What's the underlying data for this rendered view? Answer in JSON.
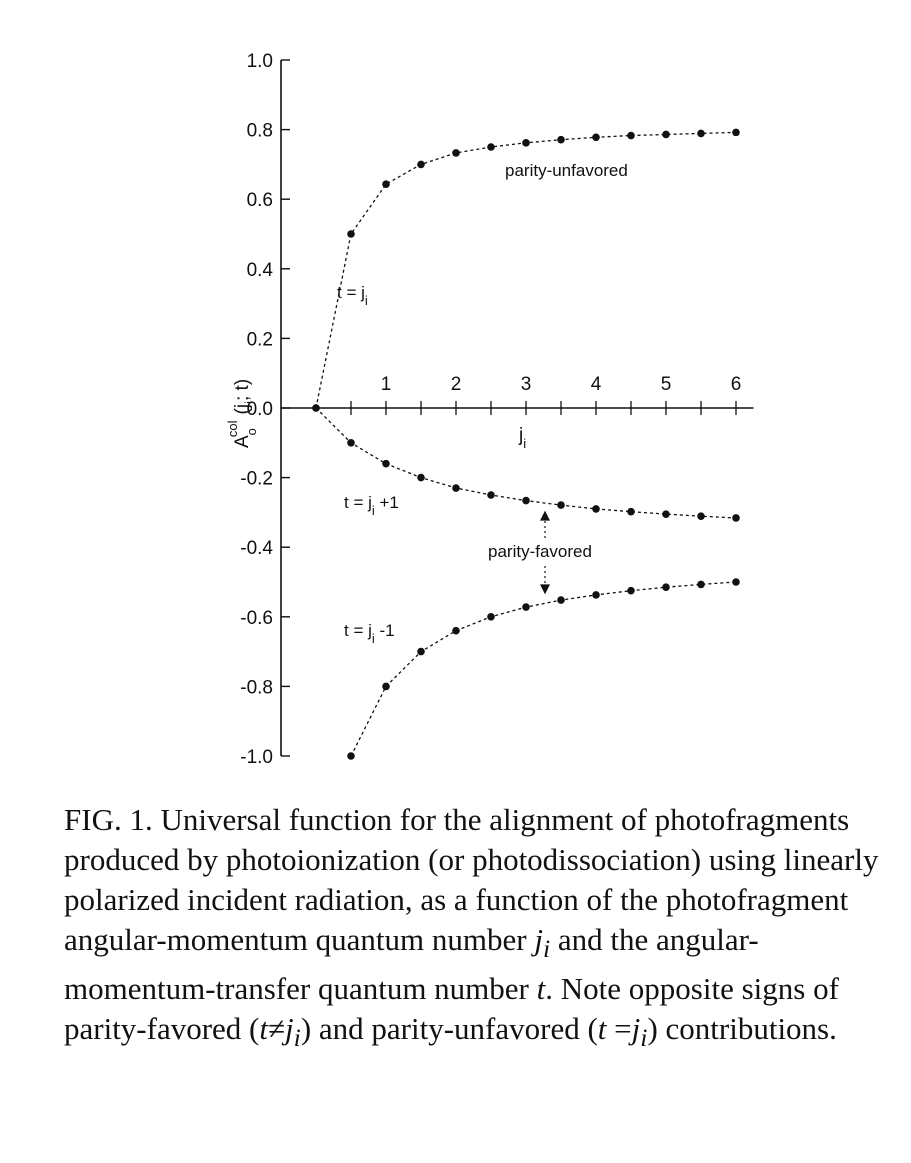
{
  "chart_data": {
    "type": "scatter",
    "ylabel_main": "A",
    "ylabel_sup": "col",
    "ylabel_sub": "o",
    "ylabel_args": "(j",
    "ylabel_args_sub": "i",
    "ylabel_args_end": "; t)",
    "xlabel_main": "j",
    "xlabel_sub": "i",
    "xlim": [
      0,
      6.25
    ],
    "ylim": [
      -1.0,
      1.0
    ],
    "x_ticks": [
      1,
      2,
      3,
      4,
      5,
      6
    ],
    "x_tick_labels": [
      "1",
      "2",
      "3",
      "4",
      "5",
      "6"
    ],
    "x_minor_step": 0.5,
    "y_ticks": [
      1.0,
      0.8,
      0.6,
      0.4,
      0.2,
      0.0,
      -0.2,
      -0.4,
      -0.6,
      -0.8,
      -1.0
    ],
    "y_tick_labels": [
      "1.0",
      "0.8",
      "0.6",
      "0.4",
      "0.2",
      "0.0",
      "-0.2",
      "-0.4",
      "-0.6",
      "-0.8",
      "-1.0"
    ],
    "grid": false,
    "series": [
      {
        "x": [
          0,
          0.5,
          1,
          1.5,
          2,
          2.5,
          3,
          3.5,
          4,
          4.5,
          5,
          5.5,
          6
        ],
        "values": [
          0,
          0.5,
          0.643,
          0.7,
          0.733,
          0.75,
          0.762,
          0.771,
          0.778,
          0.783,
          0.786,
          0.789,
          0.792
        ]
      },
      {
        "x": [
          0,
          0.5,
          1,
          1.5,
          2,
          2.5,
          3,
          3.5,
          4,
          4.5,
          5,
          5.5,
          6
        ],
        "values": [
          0,
          -0.1,
          -0.16,
          -0.2,
          -0.23,
          -0.25,
          -0.266,
          -0.279,
          -0.29,
          -0.298,
          -0.305,
          -0.311,
          -0.316
        ]
      },
      {
        "x": [
          0.5,
          1,
          1.5,
          2,
          2.5,
          3,
          3.5,
          4,
          4.5,
          5,
          5.5,
          6
        ],
        "values": [
          -1.0,
          -0.8,
          -0.7,
          -0.64,
          -0.6,
          -0.572,
          -0.552,
          -0.537,
          -0.525,
          -0.515,
          -0.507,
          -0.5
        ]
      }
    ],
    "annotations": {
      "parity_unfavored": "parity-unfavored",
      "parity_favored": "parity-favored",
      "t_eq_prefix": "t = j",
      "t_eq_sub": "i",
      "t_plus_prefix": "t = j",
      "t_plus_sub": "i",
      "t_plus_suffix": " +1",
      "t_minus_prefix": "t = j",
      "t_minus_sub": "i",
      "t_minus_suffix": " -1"
    }
  },
  "caption": {
    "label": "FIG. 1.",
    "p1": "  Universal function for the alignment of photofragments produced by photoionization (or photodissociation) using linearly polarized incident radiation, as a function of the photofragment angular-momentum quantum number ",
    "ji_j": "j",
    "ji_i": "i",
    "p2": " and the angular-momentum-transfer quantum number ",
    "t1": "t",
    "p3": ".  Note opposite signs of parity-favored (",
    "t2": "t",
    "neq": "≠",
    "ji2_j": "j",
    "ji2_i": "i",
    "p4": ") and parity-unfavored (",
    "t3": "t",
    "eq": " =",
    "ji3_j": "j",
    "ji3_i": "i",
    "p5": ") contributions."
  }
}
